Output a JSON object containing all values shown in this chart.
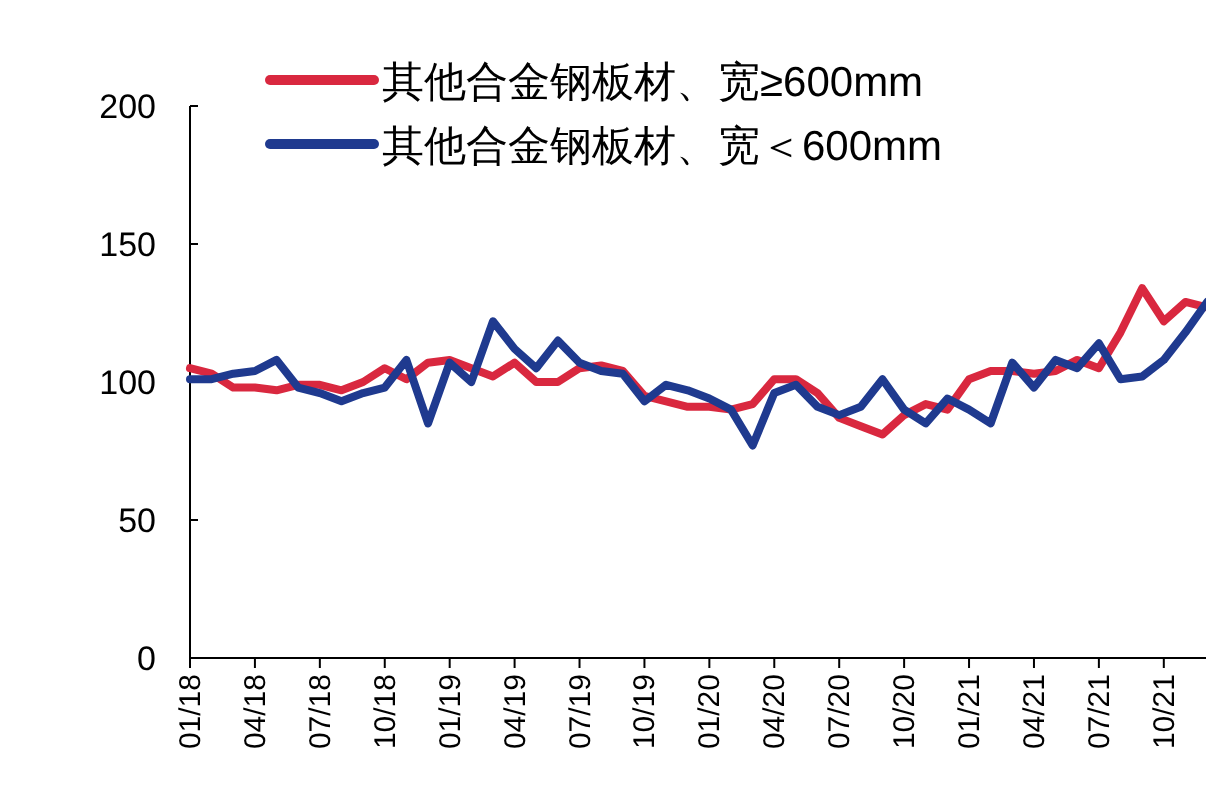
{
  "chart_data": {
    "type": "line",
    "categories": [
      "01/18",
      null,
      null,
      "04/18",
      null,
      null,
      "07/18",
      null,
      null,
      "10/18",
      null,
      null,
      "01/19",
      null,
      null,
      "04/19",
      null,
      null,
      "07/19",
      null,
      null,
      "10/19",
      null,
      null,
      "01/20",
      null,
      null,
      "04/20",
      null,
      null,
      "07/20",
      null,
      null,
      "10/20",
      null,
      null,
      "01/21",
      null,
      null,
      "04/21",
      null,
      null,
      "07/21",
      null,
      null,
      "10/21",
      null,
      null
    ],
    "series": [
      {
        "name": "其他合金钢板材、宽≥600mm",
        "color": "#d9283f",
        "values": [
          105,
          103,
          98,
          98,
          97,
          99,
          99,
          97,
          100,
          105,
          101,
          107,
          108,
          105,
          102,
          107,
          100,
          100,
          105,
          106,
          104,
          95,
          93,
          91,
          91,
          90,
          92,
          101,
          101,
          96,
          87,
          84,
          81,
          88,
          92,
          90,
          101,
          104,
          104,
          103,
          104,
          108,
          105,
          118,
          134,
          122,
          129,
          127
        ]
      },
      {
        "name": "其他合金钢板材、宽＜600mm",
        "color": "#1f3a8f",
        "values": [
          101,
          101,
          103,
          104,
          108,
          98,
          96,
          93,
          96,
          98,
          108,
          85,
          107,
          100,
          122,
          112,
          105,
          115,
          107,
          104,
          103,
          93,
          99,
          97,
          94,
          90,
          77,
          96,
          99,
          91,
          88,
          91,
          101,
          90,
          85,
          94,
          90,
          85,
          107,
          98,
          108,
          105,
          114,
          101,
          102,
          108,
          118,
          129
        ]
      }
    ],
    "ylim": [
      0,
      200
    ],
    "yticks": [
      0,
      50,
      100,
      150,
      200
    ],
    "grid": false,
    "legend": "top",
    "line_style": "solid",
    "marker": "none"
  }
}
